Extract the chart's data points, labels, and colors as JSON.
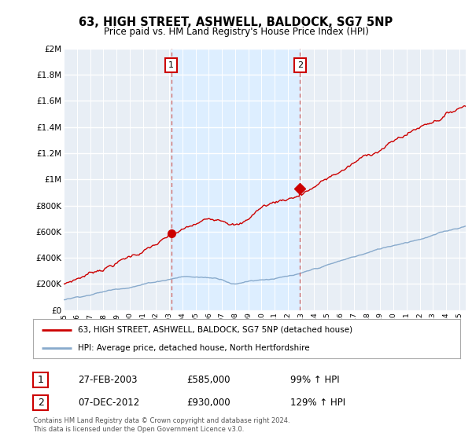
{
  "title": "63, HIGH STREET, ASHWELL, BALDOCK, SG7 5NP",
  "subtitle": "Price paid vs. HM Land Registry's House Price Index (HPI)",
  "ylabel_ticks": [
    "£0",
    "£200K",
    "£400K",
    "£600K",
    "£800K",
    "£1M",
    "£1.2M",
    "£1.4M",
    "£1.6M",
    "£1.8M",
    "£2M"
  ],
  "ytick_values": [
    0,
    200000,
    400000,
    600000,
    800000,
    1000000,
    1200000,
    1400000,
    1600000,
    1800000,
    2000000
  ],
  "ylim": [
    0,
    2000000
  ],
  "xlim_start": 1995.0,
  "xlim_end": 2025.5,
  "red_line_color": "#cc0000",
  "blue_line_color": "#88aacc",
  "shade_color": "#ddeeff",
  "marker1_year": 2003.15,
  "marker1_value": 585000,
  "marker2_year": 2012.92,
  "marker2_value": 930000,
  "marker1_label": "1",
  "marker2_label": "2",
  "sale1_date": "27-FEB-2003",
  "sale1_price": "£585,000",
  "sale1_hpi": "99% ↑ HPI",
  "sale2_date": "07-DEC-2012",
  "sale2_price": "£930,000",
  "sale2_hpi": "129% ↑ HPI",
  "legend_line1": "63, HIGH STREET, ASHWELL, BALDOCK, SG7 5NP (detached house)",
  "legend_line2": "HPI: Average price, detached house, North Hertfordshire",
  "footer1": "Contains HM Land Registry data © Crown copyright and database right 2024.",
  "footer2": "This data is licensed under the Open Government Licence v3.0.",
  "bg_color": "#ffffff",
  "plot_bg_color": "#e8eef5"
}
